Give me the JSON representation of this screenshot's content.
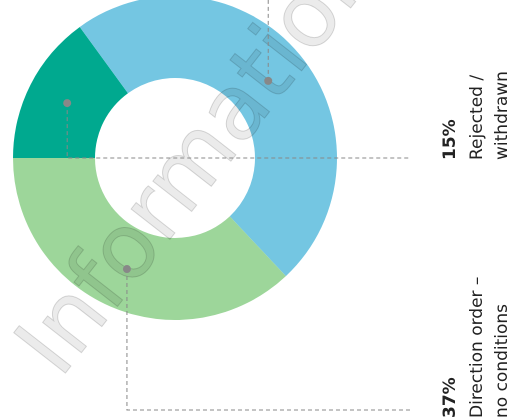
{
  "chart_data": {
    "type": "donut",
    "categories": [
      [
        "Rejected /",
        "withdrawn"
      ],
      null,
      [
        "Direction order –",
        "no conditions"
      ]
    ],
    "values": [
      15,
      48,
      37
    ],
    "value_labels": [
      "15%",
      null,
      "37%"
    ],
    "colors": [
      "#00a98f",
      "#74c6e2",
      "#9dd69a"
    ],
    "watermark": "Information Ac"
  }
}
